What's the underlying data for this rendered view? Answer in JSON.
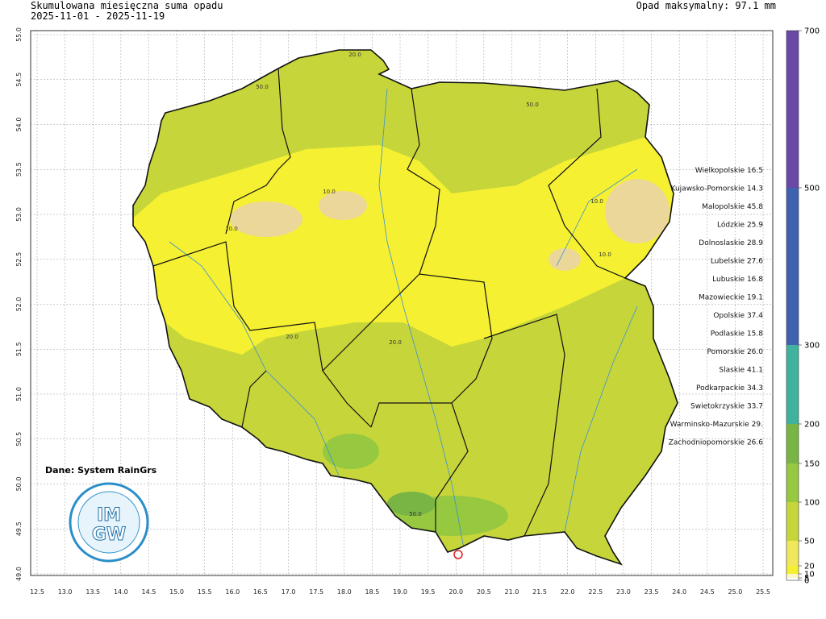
{
  "header": {
    "title": "Skumulowana miesięczna suma opadu",
    "period": "2025-11-01 - 2025-11-19",
    "max": "Opad maksymalny: 97.1 mm"
  },
  "map": {
    "lat_ticks": [
      {
        "value": 49,
        "label": "49.0"
      },
      49.5,
      {
        "value": 50,
        "label": "50.0"
      },
      50.5,
      {
        "value": 51,
        "label": "51.0"
      },
      51.5,
      {
        "value": 52,
        "label": "52.0"
      },
      52.5,
      {
        "value": 53,
        "label": "53.0"
      },
      53.5,
      {
        "value": 54,
        "label": "54.0"
      },
      54.5,
      {
        "value": 55,
        "label": "55.0"
      }
    ],
    "lon_ticks": [
      12.5,
      {
        "value": 13,
        "label": "13.0"
      },
      13.5,
      {
        "value": 14,
        "label": "14.0"
      },
      14.5,
      {
        "value": 15,
        "label": "15.0"
      },
      15.5,
      {
        "value": 16,
        "label": "16.0"
      },
      16.5,
      {
        "value": 17,
        "label": "17.0"
      },
      17.5,
      {
        "value": 18,
        "label": "18.0"
      },
      18.5,
      {
        "value": 19,
        "label": "19.0"
      },
      19.5,
      {
        "value": 20,
        "label": "20.0"
      },
      20.5,
      {
        "value": 21,
        "label": "21.0"
      },
      21.5,
      {
        "value": 22,
        "label": "22.0"
      },
      22.5,
      {
        "value": 23,
        "label": "23.0"
      },
      23.5,
      {
        "value": 24,
        "label": "24.0"
      },
      24.5,
      {
        "value": 25,
        "label": "25.0"
      },
      25.5
    ],
    "latlim": [
      49,
      55
    ],
    "lonlim": [
      12.5,
      25.5
    ],
    "contour_labels": [
      "20.0",
      "50.0",
      "50.0",
      "10.0",
      "10.0",
      "10.0",
      "10.0",
      "20.0",
      "20.0",
      "50.0"
    ],
    "source": "Dane: System RainGrs",
    "logo": {
      "top": "IM",
      "bottom": "GW"
    },
    "regions": [
      {
        "name": "Wielkopolskie",
        "value": "16.5"
      },
      {
        "name": "Kujawsko-Pomorskie",
        "value": "14.3"
      },
      {
        "name": "Malopolskie",
        "value": "45.8"
      },
      {
        "name": "Lódzkie",
        "value": "25.9"
      },
      {
        "name": "Dolnoslaskie",
        "value": "28.9"
      },
      {
        "name": "Lubelskie",
        "value": "27.6"
      },
      {
        "name": "Lubuskie",
        "value": "16.8"
      },
      {
        "name": "Mazowieckie",
        "value": "19.1"
      },
      {
        "name": "Opolskie",
        "value": "37.4"
      },
      {
        "name": "Podlaskie",
        "value": "15.8"
      },
      {
        "name": "Pomorskie",
        "value": "26.0"
      },
      {
        "name": "Slaskie",
        "value": "41.1"
      },
      {
        "name": "Podkarpackie",
        "value": "34.3"
      },
      {
        "name": "Swietokrzyskie",
        "value": "33.7"
      },
      {
        "name": "Warminsko-Mazurskie",
        "value": "29."
      },
      {
        "name": "Zachodniopomorskie",
        "value": "26.6"
      }
    ]
  },
  "colorbar": {
    "levels": [
      0,
      5,
      10,
      20,
      50,
      100,
      150,
      200,
      300,
      500,
      700
    ],
    "colors": [
      "#ffffff",
      "#fdf7c8",
      "#f5f032",
      "#f0e85a",
      "#c6d63a",
      "#96c840",
      "#79b544",
      "#3fb3a0",
      "#3f62b0",
      "#6a48a8"
    ]
  }
}
